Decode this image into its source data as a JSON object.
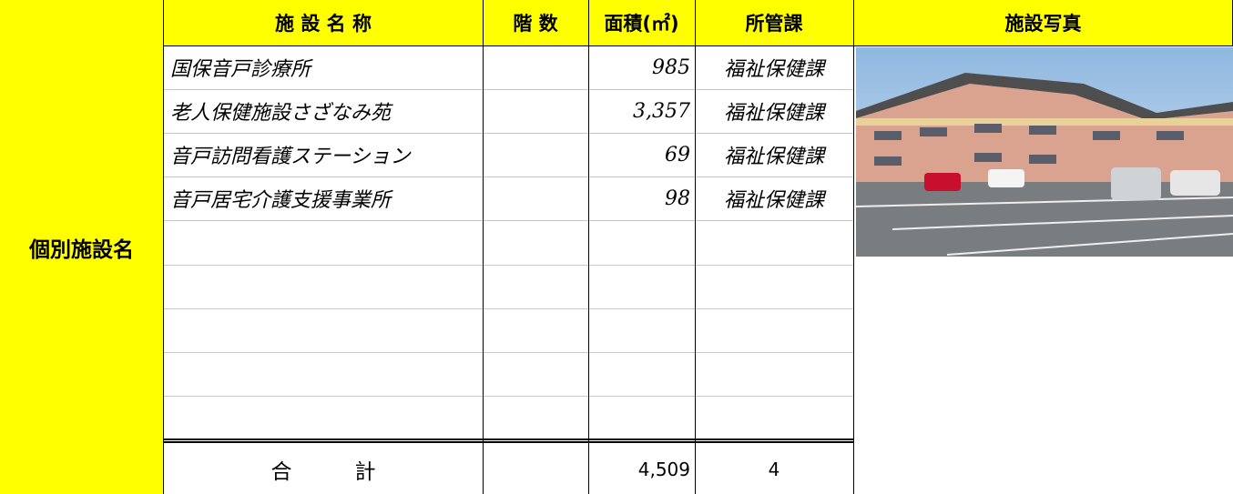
{
  "side_label": "個別施設名",
  "header": {
    "name": "施 設 名 称",
    "floors": "階 数",
    "area": "面積(㎡)",
    "dept": "所管課",
    "photo": "施設写真"
  },
  "rows": [
    {
      "name": "国保音戸診療所",
      "area": "985",
      "dept": "福祉保健課"
    },
    {
      "name": "老人保健施設さざなみ苑",
      "area": "3,357",
      "dept": "福祉保健課"
    },
    {
      "name": "音戸訪問看護ステーション",
      "area": "69",
      "dept": "福祉保健課"
    },
    {
      "name": "音戸居宅介護支援事業所",
      "area": "98",
      "dept": "福祉保健課"
    }
  ],
  "total": {
    "label": "合　　　計",
    "area": "4,509",
    "count": "4"
  }
}
